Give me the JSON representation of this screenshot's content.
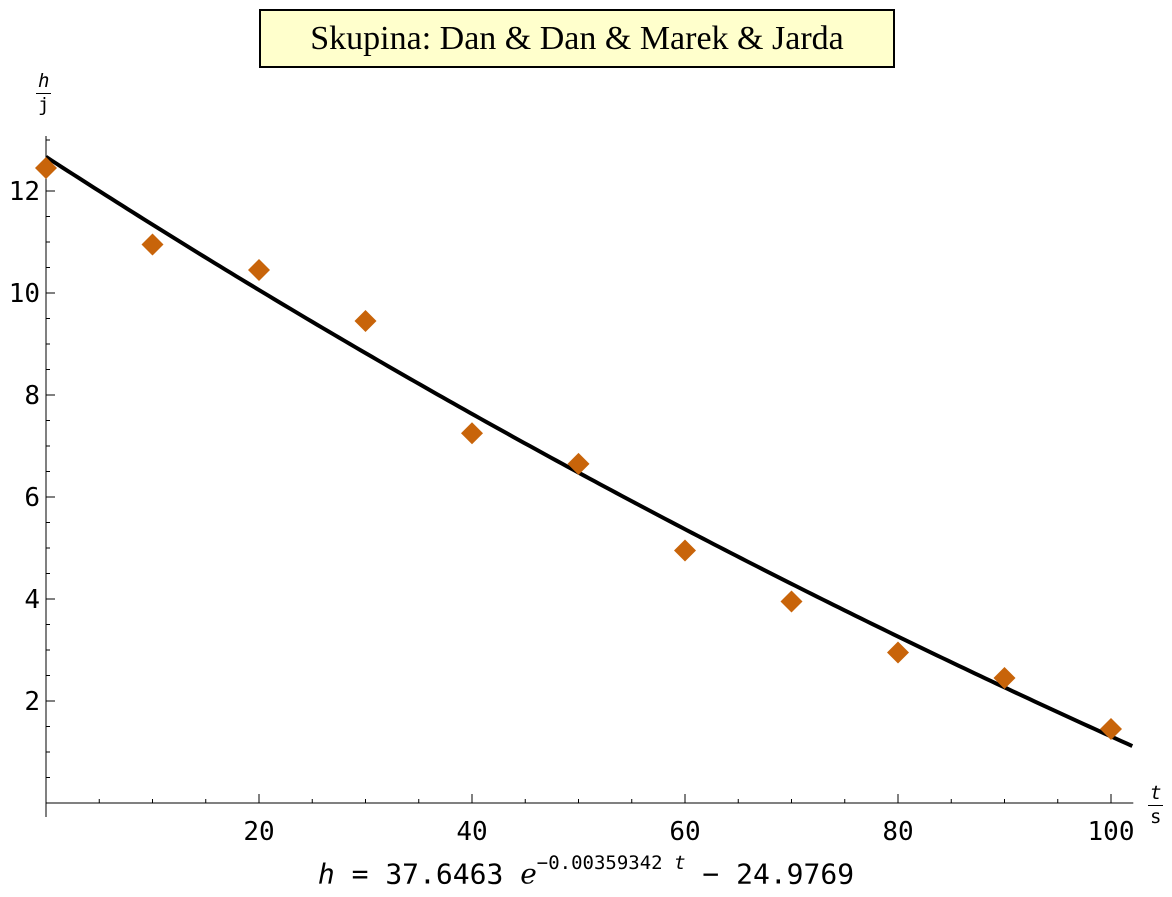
{
  "chart_data": {
    "type": "scatter",
    "title": "Skupina: Dan & Dan & Marek & Jarda",
    "xlabel": {
      "numerator": "t",
      "denominator": "s"
    },
    "ylabel": {
      "numerator": "h",
      "denominator": "j"
    },
    "xlim": [
      0,
      102
    ],
    "ylim": [
      0,
      13
    ],
    "x_ticks": [
      20,
      40,
      60,
      80,
      100
    ],
    "y_ticks": [
      2,
      4,
      6,
      8,
      10,
      12
    ],
    "grid": false,
    "series": [
      {
        "kind": "points",
        "marker": "diamond",
        "color": "#c8640a",
        "x": [
          0,
          10,
          20,
          30,
          40,
          50,
          60,
          70,
          80,
          90,
          100
        ],
        "y": [
          12.45,
          10.95,
          10.45,
          9.45,
          7.25,
          6.65,
          4.95,
          3.95,
          2.95,
          2.45,
          1.45
        ]
      },
      {
        "kind": "fit",
        "color": "#000000",
        "model": {
          "a": 37.6463,
          "k": -0.00359342,
          "c": -24.9769
        },
        "x_range": [
          0,
          102
        ]
      }
    ],
    "formula": {
      "lhs": "h",
      "eq": "=",
      "coef": "37.6463",
      "base": "ℯ",
      "exponent_num": "−0.00359342",
      "exponent_var": "t",
      "tail": "− 24.9769"
    }
  }
}
